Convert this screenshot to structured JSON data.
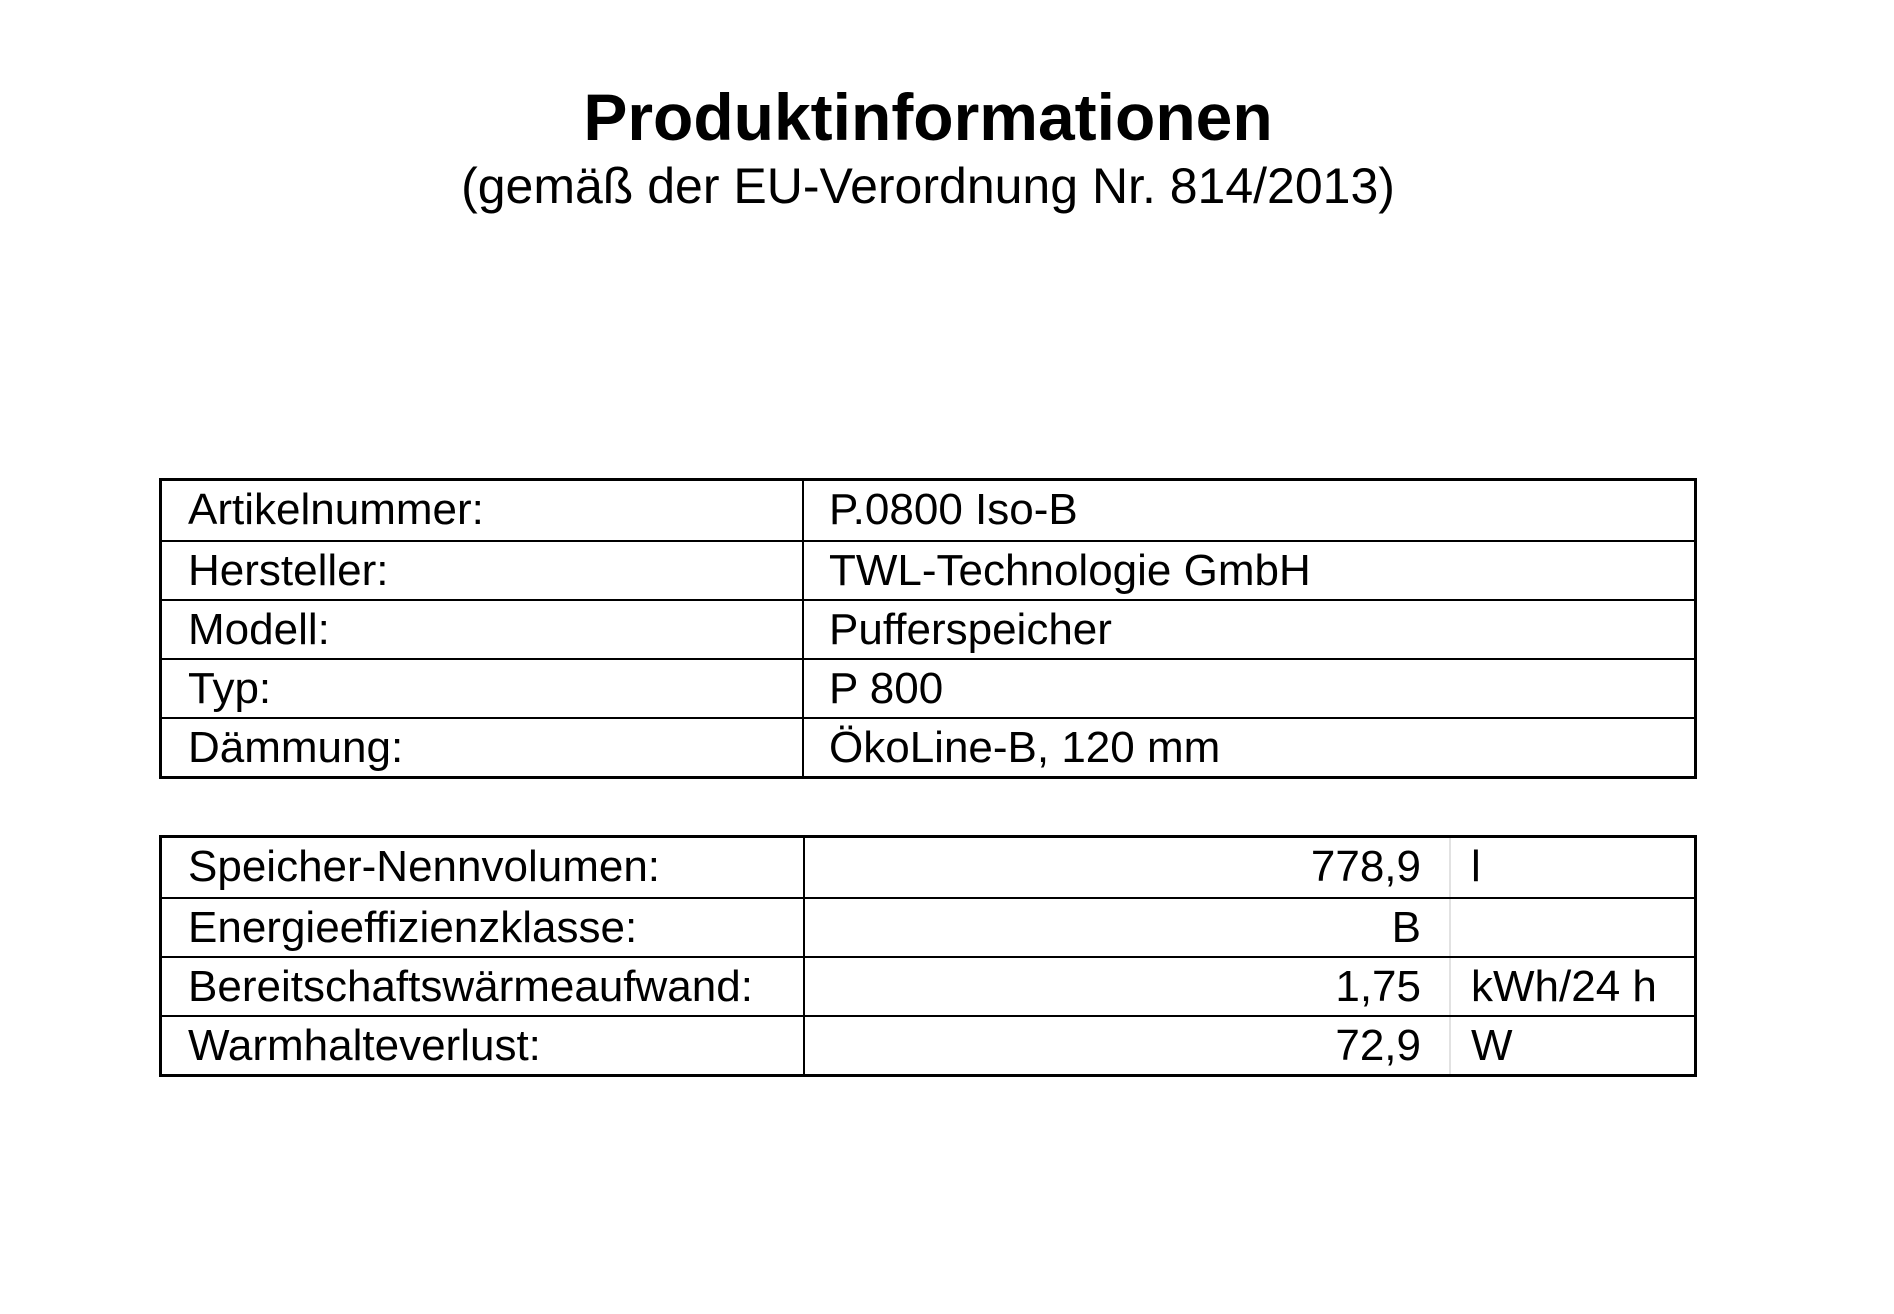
{
  "header": {
    "title": "Produktinformationen",
    "subtitle": "(gemäß der EU-Verordnung Nr. 814/2013)"
  },
  "product_table": {
    "rows": [
      {
        "label": "Artikelnummer:",
        "value": "P.0800 Iso-B"
      },
      {
        "label": "Hersteller:",
        "value": "TWL-Technologie GmbH"
      },
      {
        "label": "Modell:",
        "value": "Pufferspeicher"
      },
      {
        "label": "Typ:",
        "value": "P 800"
      },
      {
        "label": "Dämmung:",
        "value": "ÖkoLine-B, 120 mm"
      }
    ]
  },
  "spec_table": {
    "rows": [
      {
        "label": "Speicher-Nennvolumen:",
        "value": "778,9",
        "unit": "l"
      },
      {
        "label": "Energieeffizienzklasse:",
        "value": "B",
        "unit": ""
      },
      {
        "label": "Bereitschaftswärmeaufwand:",
        "value": "1,75",
        "unit": "kWh/24 h"
      },
      {
        "label": "Warmhalteverlust:",
        "value": "72,9",
        "unit": "W"
      }
    ]
  },
  "colors": {
    "background": "#ffffff",
    "text": "#000000",
    "table_border": "#000000"
  }
}
